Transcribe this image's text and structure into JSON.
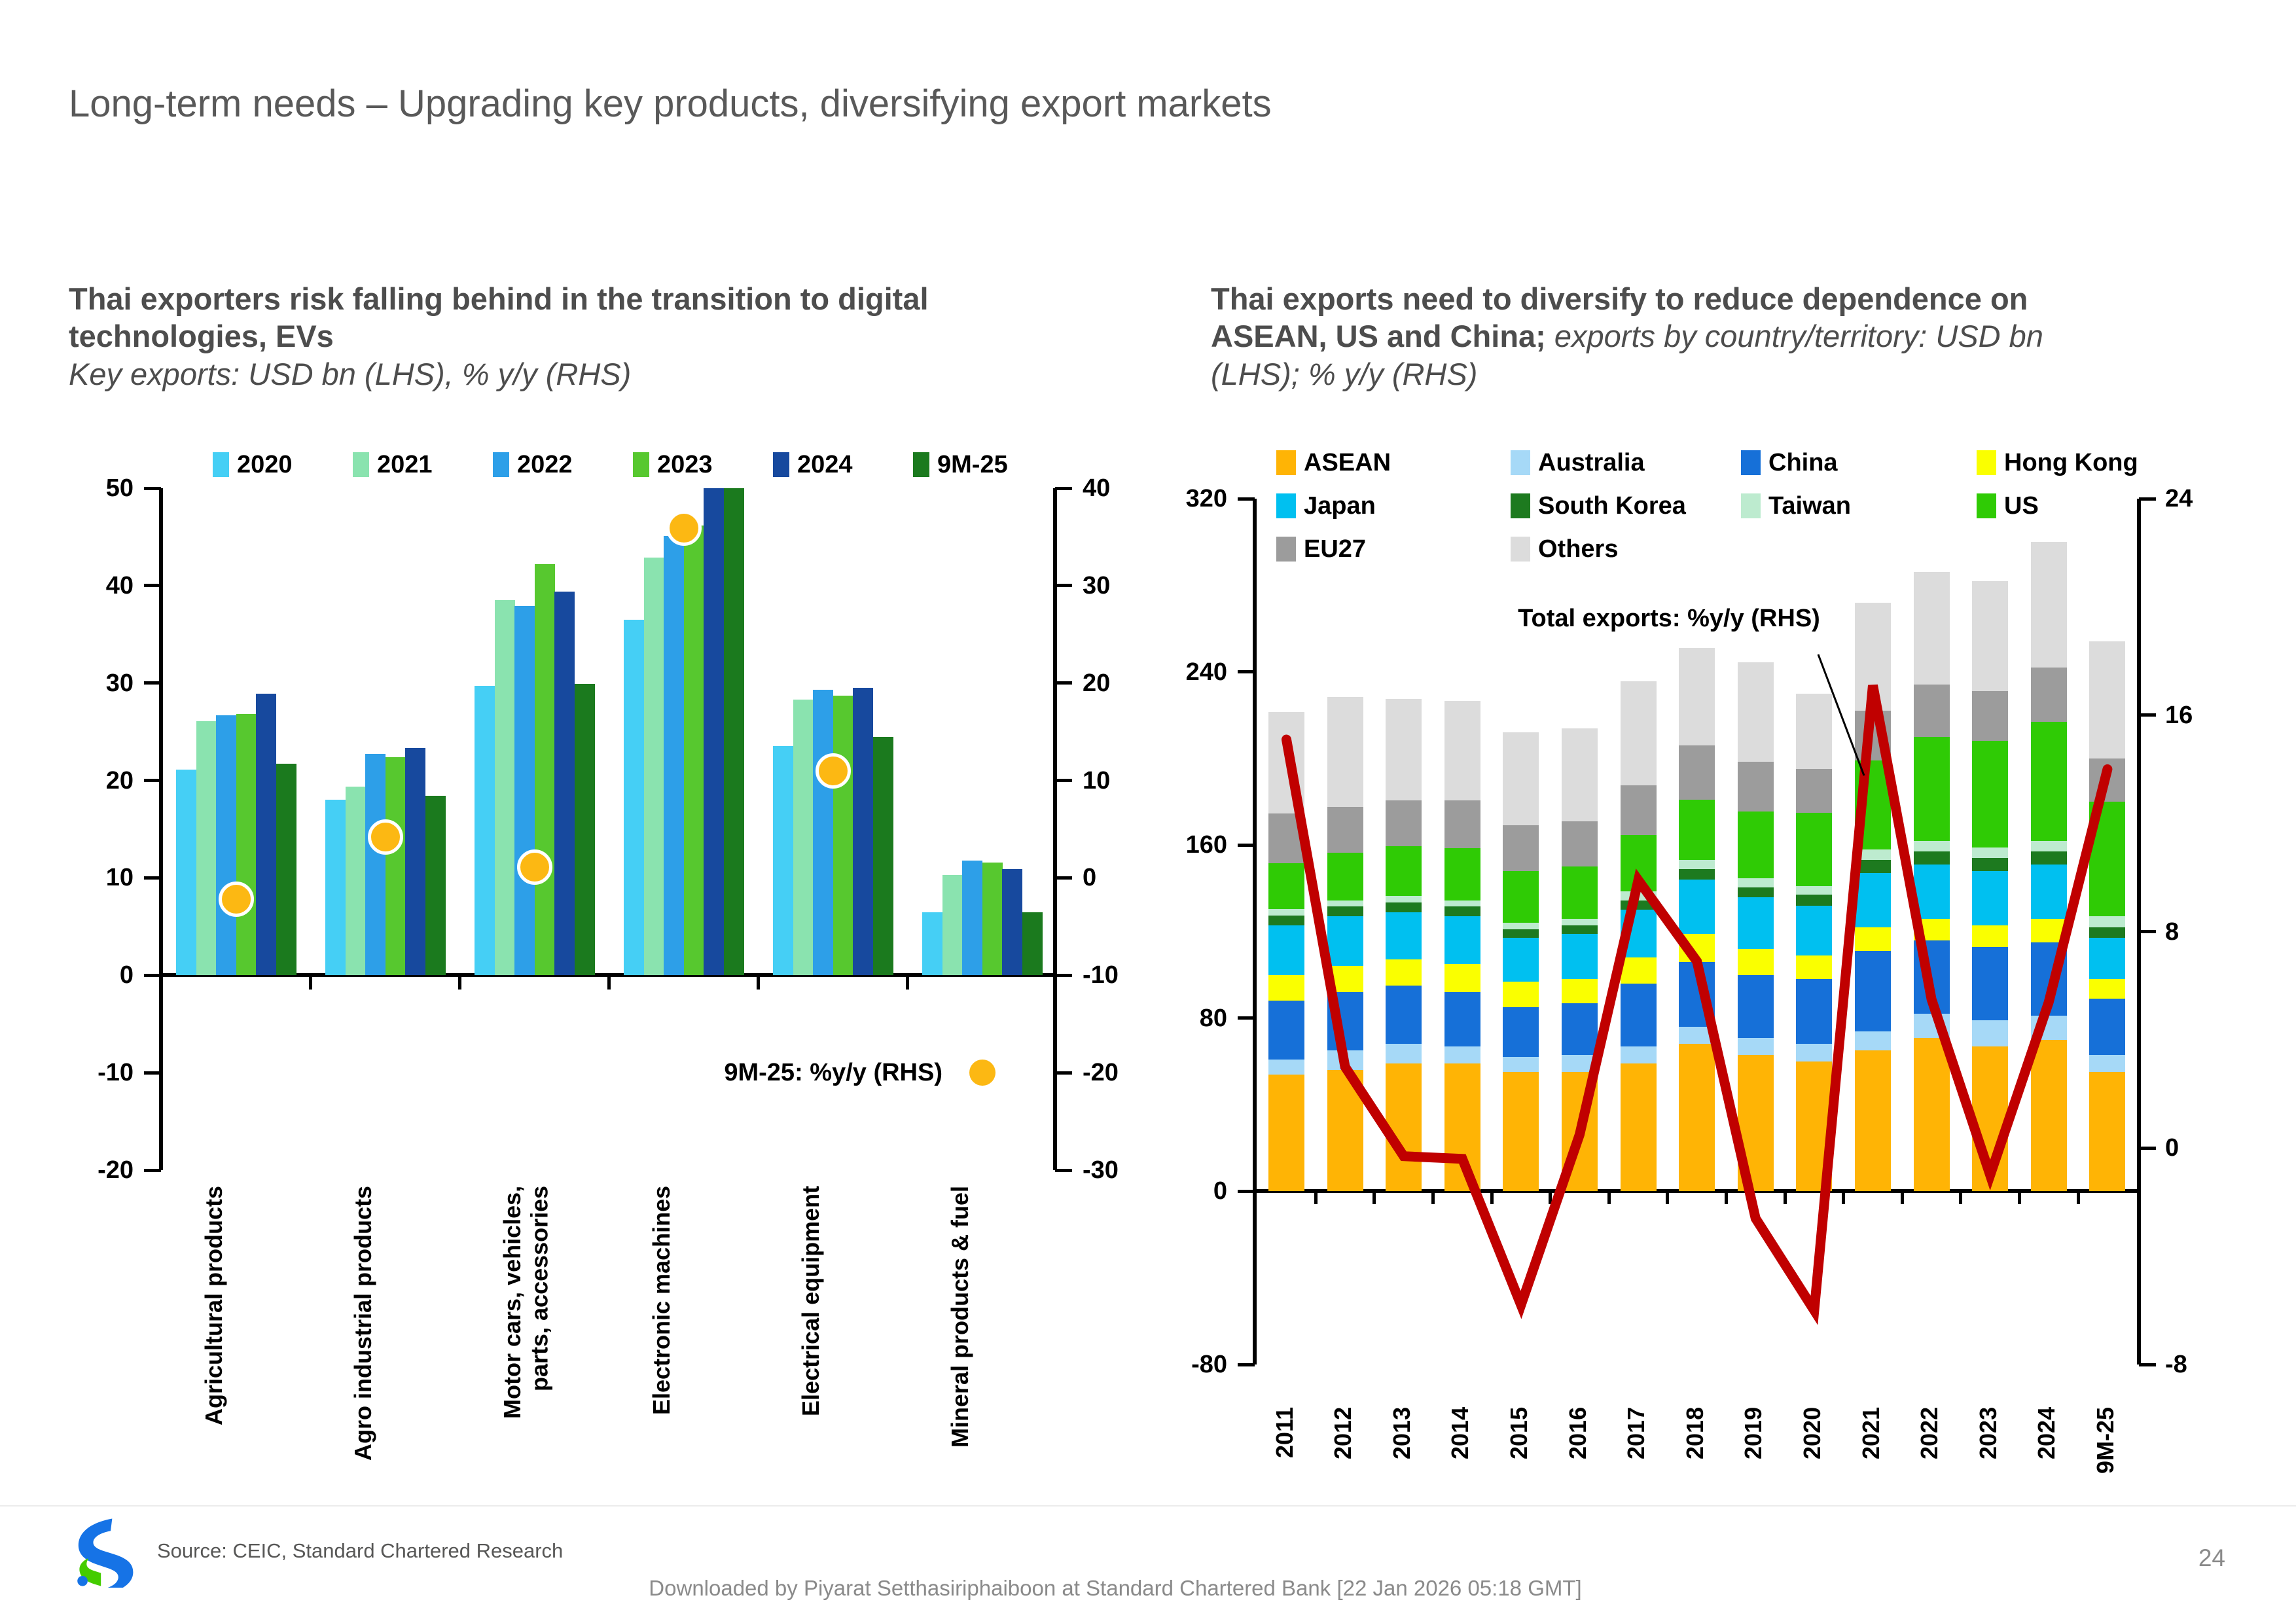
{
  "page": {
    "title": "Long-term needs – Upgrading key products, diversifying export markets",
    "page_number": "24",
    "source": "Source: CEIC, Standard Chartered Research",
    "download_notice": "Downloaded by Piyarat Setthasiriphaiboon at Standard Chartered Bank [22 Jan 2026 05:18 GMT]",
    "brand_colors": {
      "blue": "#1673e6",
      "green": "#44cc00"
    }
  },
  "left_panel": {
    "heading_bold": "Thai exporters risk falling behind in the transition to digital technologies, EVs",
    "heading_italic": "Key exports: USD bn (LHS), % y/y (RHS)",
    "chart_data": {
      "type": "bar",
      "categories": [
        "Agricultural products",
        "Agro industrial products",
        "Motor cars, vehicles,\nparts, accessories",
        "Electronic machines",
        "Electrical equipment",
        "Mineral products & fuel"
      ],
      "series": [
        {
          "name": "2020",
          "color": "#45cff5",
          "values": [
            21.1,
            18.0,
            29.7,
            36.5,
            23.5,
            6.5
          ]
        },
        {
          "name": "2021",
          "color": "#8ae3af",
          "values": [
            26.1,
            19.4,
            38.5,
            42.9,
            28.3,
            10.3
          ]
        },
        {
          "name": "2022",
          "color": "#2d9fe8",
          "values": [
            26.7,
            22.7,
            37.9,
            45.1,
            29.3,
            11.8
          ]
        },
        {
          "name": "2023",
          "color": "#57c82f",
          "values": [
            26.8,
            22.4,
            42.2,
            46.2,
            28.7,
            11.6
          ]
        },
        {
          "name": "2024",
          "color": "#17499e",
          "values": [
            28.9,
            23.3,
            39.4,
            50.0,
            29.5,
            10.9
          ]
        },
        {
          "name": "9M-25",
          "color": "#1b7a1e",
          "values": [
            21.7,
            18.4,
            29.9,
            50.0,
            24.5,
            6.5
          ]
        }
      ],
      "dot_series": {
        "name": "9M-25: %y/y (RHS)",
        "color": "#fcb813",
        "values_rhs": [
          -2.2,
          4.2,
          1.1,
          35.9,
          11.0,
          -20.0
        ]
      },
      "annotation": "9M-25: %y/y (RHS)",
      "lhs_ticks": [
        50,
        40,
        30,
        20,
        10,
        0,
        -10,
        -20
      ],
      "rhs_ticks": [
        40,
        30,
        20,
        10,
        0,
        -10,
        -20,
        -30
      ],
      "lhs_range": [
        -20,
        50
      ],
      "rhs_range": [
        -30,
        40
      ],
      "xlabel": "",
      "ylabel_lhs": "USD bn",
      "ylabel_rhs": "% y/y",
      "grid": false
    }
  },
  "right_panel": {
    "heading_bold": "Thai exports need to diversify to reduce dependence on ASEAN, US and China;",
    "heading_italic": "exports by country/territory: USD bn (LHS); % y/y (RHS)",
    "chart_data": {
      "type": "stacked-bar-line",
      "categories": [
        "2011",
        "2012",
        "2013",
        "2014",
        "2015",
        "2016",
        "2017",
        "2018",
        "2019",
        "2020",
        "2021",
        "2022",
        "2023",
        "2024",
        "9M-25"
      ],
      "series": [
        {
          "name": "ASEAN",
          "color": "#ffb405",
          "values": [
            54,
            56,
            59,
            59,
            55,
            55,
            59,
            68,
            63,
            60,
            65,
            71,
            67,
            70,
            55
          ]
        },
        {
          "name": "Australia",
          "color": "#a6d9f7",
          "values": [
            7,
            9,
            9,
            8,
            7,
            8,
            8,
            8,
            8,
            8,
            9,
            11,
            12,
            11,
            8
          ]
        },
        {
          "name": "China",
          "color": "#1670d8",
          "values": [
            27,
            27,
            27,
            25,
            23,
            24,
            29,
            30,
            29,
            30,
            37,
            34,
            34,
            34,
            26
          ]
        },
        {
          "name": "Hong Kong",
          "color": "#faff00",
          "values": [
            12,
            12,
            12,
            13,
            12,
            11,
            12,
            13,
            12,
            11,
            11,
            10,
            10,
            11,
            9
          ]
        },
        {
          "name": "Japan",
          "color": "#00c0f0",
          "values": [
            23,
            23,
            22,
            22,
            20,
            21,
            22,
            25,
            24,
            23,
            25,
            25,
            25,
            25,
            19
          ]
        },
        {
          "name": "South Korea",
          "color": "#1d7a1f",
          "values": [
            4.5,
            4.5,
            4.5,
            4.5,
            4,
            4,
            4.5,
            5,
            4.5,
            5,
            6,
            6,
            6,
            6,
            5
          ]
        },
        {
          "name": "Taiwan",
          "color": "#bdebcf",
          "values": [
            3,
            3,
            3,
            3,
            3,
            3,
            4,
            4,
            4,
            4,
            5,
            5,
            5,
            5,
            5
          ]
        },
        {
          "name": "US",
          "color": "#2fcb05",
          "values": [
            21,
            22,
            23,
            24,
            24,
            24,
            26,
            28,
            31,
            34,
            41,
            48,
            49,
            55,
            53
          ]
        },
        {
          "name": "EU27",
          "color": "#9c9c9c",
          "values": [
            23,
            21,
            21,
            22,
            21,
            21,
            23,
            25,
            23,
            20,
            23,
            24,
            23,
            25,
            20
          ]
        },
        {
          "name": "Others",
          "color": "#dcdcdc",
          "values": [
            47,
            51,
            47,
            46,
            43,
            43,
            48,
            45,
            46,
            35,
            50,
            52,
            51,
            58,
            54
          ]
        }
      ],
      "line_series": {
        "name": "Total exports: %y/y (RHS)",
        "color": "#c00000",
        "values_rhs": [
          15.1,
          3.0,
          -0.3,
          -0.4,
          -5.8,
          0.5,
          9.9,
          6.9,
          -2.6,
          -6.0,
          17.1,
          5.5,
          -1.0,
          5.4,
          14.0
        ]
      },
      "annotation": "Total exports: %y/y (RHS)",
      "lhs_ticks": [
        320,
        240,
        160,
        80,
        0,
        -80
      ],
      "rhs_ticks": [
        24,
        16,
        8,
        0,
        -8
      ],
      "lhs_range": [
        -80,
        320
      ],
      "rhs_range": [
        -8,
        24
      ],
      "xlabel": "",
      "ylabel_lhs": "USD bn",
      "ylabel_rhs": "% y/y",
      "grid": false
    }
  }
}
